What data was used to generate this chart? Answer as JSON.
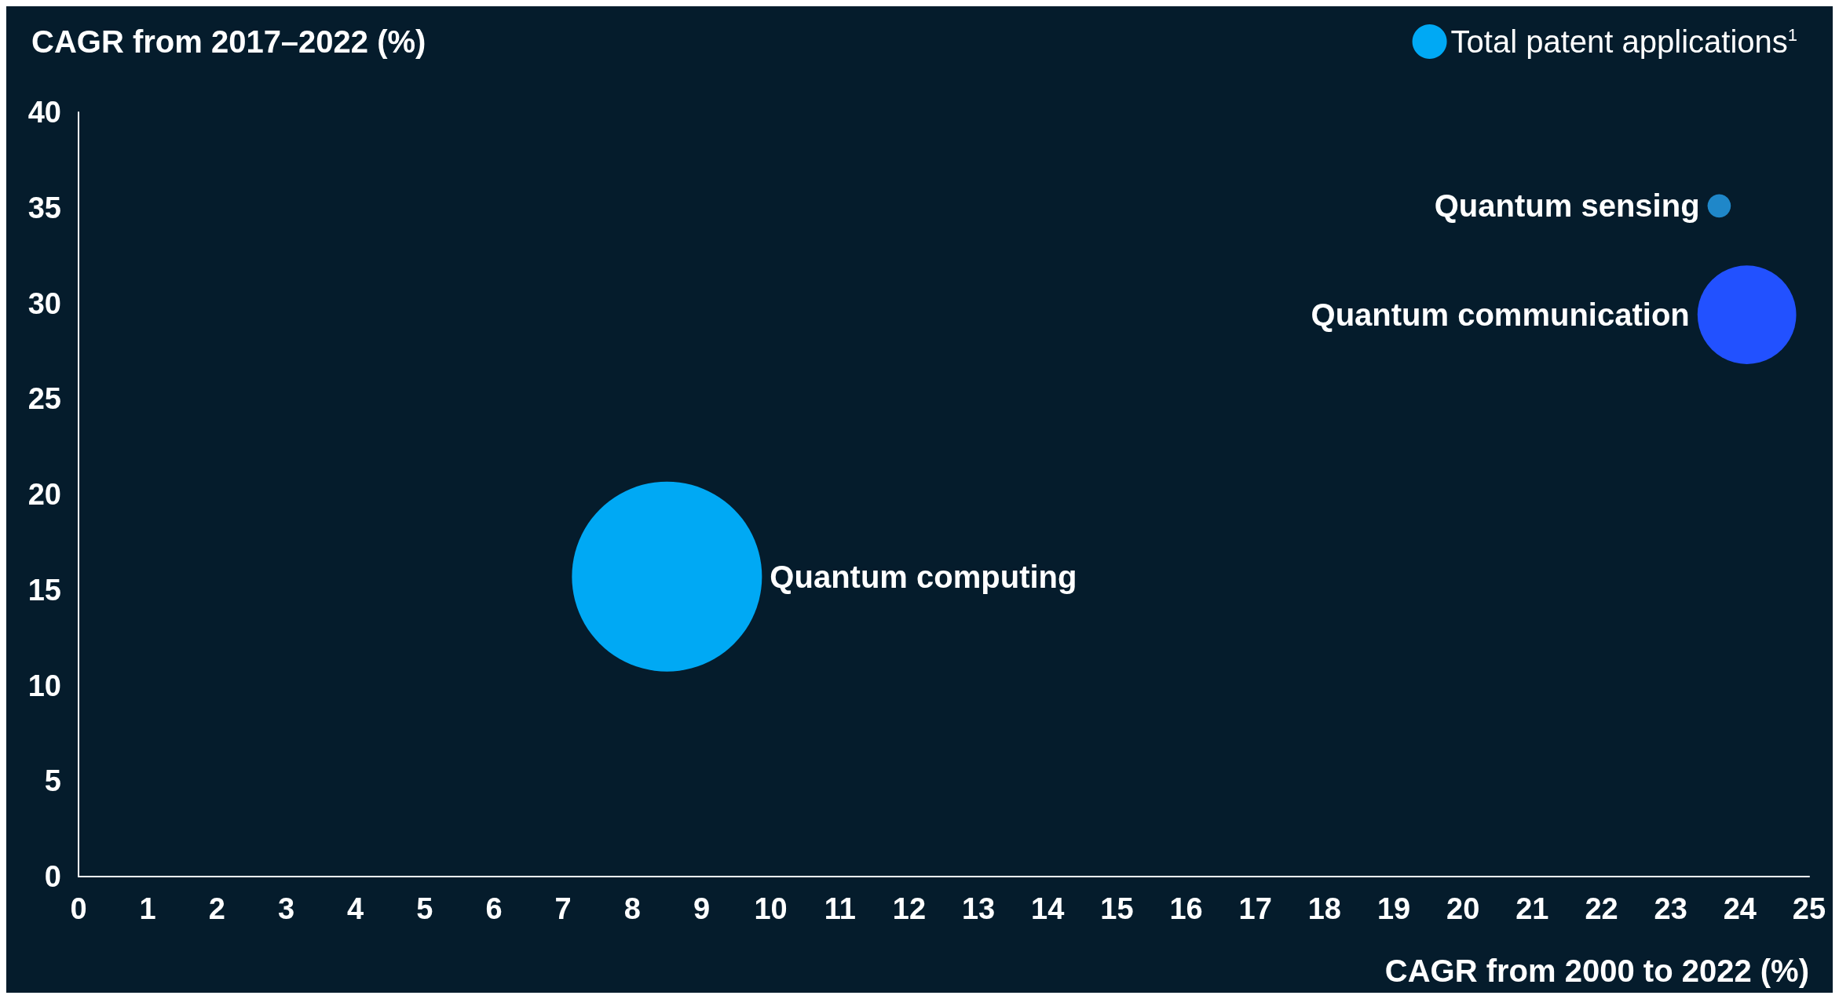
{
  "chart_data": {
    "type": "bubble",
    "ylabel": "CAGR from 2017–2022 (%)",
    "xlabel": "CAGR from 2000 to 2022 (%)",
    "xlim": [
      0,
      25
    ],
    "xticks": [
      0,
      1,
      2,
      3,
      4,
      5,
      6,
      7,
      8,
      9,
      10,
      11,
      12,
      13,
      14,
      15,
      16,
      17,
      18,
      19,
      20,
      21,
      22,
      23,
      24,
      25
    ],
    "ylim": [
      0,
      40
    ],
    "yticks": [
      0,
      5,
      10,
      15,
      20,
      25,
      30,
      35,
      40
    ],
    "series": [
      {
        "name": "Total patent applications$^{1}$",
        "color": "#00a9f4",
        "colors": [
          "#00a9f4",
          "#2251ff",
          "#1f87c9"
        ],
        "x": [
          8.5,
          24.1,
          23.7
        ],
        "values": [
          15.7,
          29.4,
          35.1
        ],
        "sizes": [
          1,
          0.27,
          0.015
        ]
      }
    ],
    "annotations": [
      "Quantum computing",
      "Quantum communication",
      "Quantum sensing"
    ],
    "legend": "top right",
    "grid": false
  }
}
